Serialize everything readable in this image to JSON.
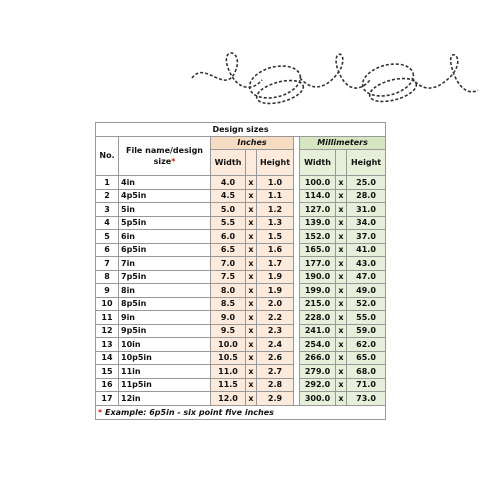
{
  "title": "Design sizes",
  "headers": {
    "no": "No.",
    "name": "File name/design size",
    "name_mark": "*",
    "inches": "Inches",
    "millimeters": "Millimeters",
    "inches_cols": [
      "Width",
      "Height"
    ],
    "mm_cols": [
      "Width",
      "Height"
    ]
  },
  "rows": [
    [
      "1",
      "4in",
      "4.0",
      "x",
      "1.0",
      "100.0",
      "x",
      "25.0"
    ],
    [
      "2",
      "4p5in",
      "4.5",
      "x",
      "1.1",
      "114.0",
      "x",
      "28.0"
    ],
    [
      "3",
      "5in",
      "5.0",
      "x",
      "1.2",
      "127.0",
      "x",
      "31.0"
    ],
    [
      "4",
      "5p5in",
      "5.5",
      "x",
      "1.3",
      "139.0",
      "x",
      "34.0"
    ],
    [
      "5",
      "6in",
      "6.0",
      "x",
      "1.5",
      "152.0",
      "x",
      "37.0"
    ],
    [
      "6",
      "6p5in",
      "6.5",
      "x",
      "1.6",
      "165.0",
      "x",
      "41.0"
    ],
    [
      "7",
      "7in",
      "7.0",
      "x",
      "1.7",
      "177.0",
      "x",
      "43.0"
    ],
    [
      "8",
      "7p5in",
      "7.5",
      "x",
      "1.9",
      "190.0",
      "x",
      "47.0"
    ],
    [
      "9",
      "8in",
      "8.0",
      "x",
      "1.9",
      "199.0",
      "x",
      "49.0"
    ],
    [
      "10",
      "8p5in",
      "8.5",
      "x",
      "2.0",
      "215.0",
      "x",
      "52.0"
    ],
    [
      "11",
      "9in",
      "9.0",
      "x",
      "2.2",
      "228.0",
      "x",
      "55.0"
    ],
    [
      "12",
      "9p5in",
      "9.5",
      "x",
      "2.3",
      "241.0",
      "x",
      "59.0"
    ],
    [
      "13",
      "10in",
      "10.0",
      "x",
      "2.4",
      "254.0",
      "x",
      "62.0"
    ],
    [
      "14",
      "10p5in",
      "10.5",
      "x",
      "2.6",
      "266.0",
      "x",
      "65.0"
    ],
    [
      "15",
      "11in",
      "11.0",
      "x",
      "2.7",
      "279.0",
      "x",
      "68.0"
    ],
    [
      "16",
      "11p5in",
      "11.5",
      "x",
      "2.8",
      "292.0",
      "x",
      "71.0"
    ],
    [
      "17",
      "12in",
      "12.0",
      "x",
      "2.9",
      "300.0",
      "x",
      "73.0"
    ]
  ],
  "footnote": {
    "mark": "*",
    "text": "Example: 6p5in - six point five inches"
  }
}
